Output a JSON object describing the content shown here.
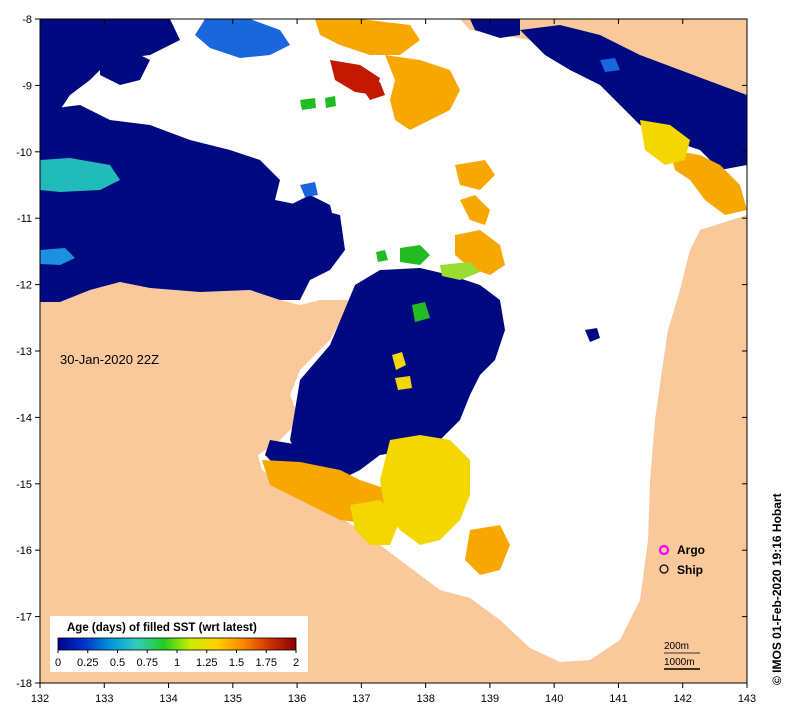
{
  "map": {
    "timestamp": "30-Jan-2020 22Z",
    "credit": "© IMOS 01-Feb-2020 19:16 Hobart",
    "lon_range": [
      132,
      143
    ],
    "lat_range": [
      -18,
      -8
    ],
    "lon_ticks": [
      "132",
      "133",
      "134",
      "135",
      "136",
      "137",
      "138",
      "139",
      "140",
      "141",
      "142",
      "143"
    ],
    "lat_ticks": [
      "-8",
      "-9",
      "-10",
      "-11",
      "-12",
      "-13",
      "-14",
      "-15",
      "-16",
      "-17",
      "-18"
    ],
    "colors": {
      "land": "#f9c89b",
      "no_data": "#ffffff",
      "fresh": "#000a80"
    }
  },
  "legend": {
    "title": "Age (days) of filled SST (wrt latest)",
    "ticks": [
      "0",
      "0.25",
      "0.5",
      "0.75",
      "1",
      "1.25",
      "1.5",
      "1.75",
      "2"
    ],
    "stops": [
      "#00008f",
      "#0033cc",
      "#0099dd",
      "#33ccbb",
      "#22cc22",
      "#ccee00",
      "#ffd000",
      "#ff8800",
      "#cc3300",
      "#8b0000"
    ]
  },
  "markers": {
    "argo_label": "Argo",
    "ship_label": "Ship",
    "argo_color": "#ff00ff"
  },
  "depth_scale": {
    "shallow": "200m",
    "deep": "1000m"
  }
}
